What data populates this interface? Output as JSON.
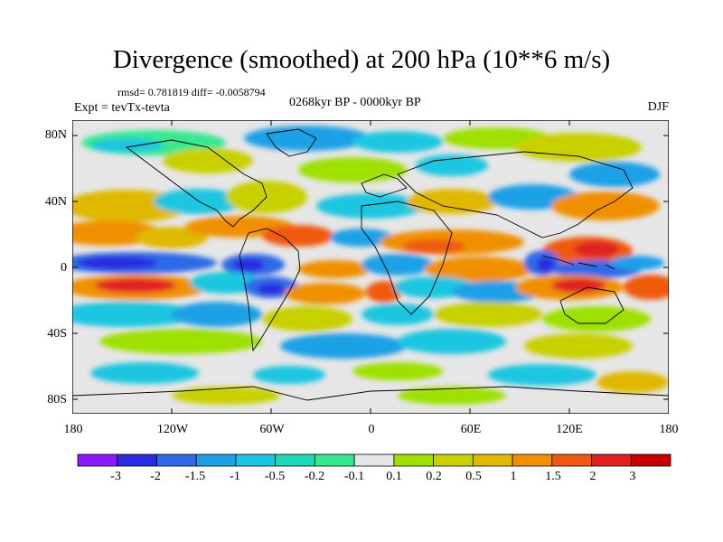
{
  "title": "Divergence (smoothed) at 200 hPa (10**6 m/s)",
  "stats": "rmsd= 0.781819 diff= -0.0058794",
  "experiment": "Expt = tevTx-tevta",
  "period": "0268kyr BP - 0000kyr BP",
  "season": "DJF",
  "lat_labels": [
    "80N",
    "40N",
    "0",
    "40S",
    "80S"
  ],
  "lon_labels": [
    "180",
    "120W",
    "60W",
    "0",
    "60E",
    "120E",
    "180"
  ],
  "colorbar": {
    "labels": [
      "-3",
      "-2",
      "-1.5",
      "-1",
      "-0.5",
      "-0.2",
      "-0.1",
      "0.1",
      "0.2",
      "0.5",
      "1",
      "1.5",
      "2",
      "3"
    ],
    "colors": [
      "#8c1aff",
      "#2a2ae0",
      "#2f6ae8",
      "#1fa0e6",
      "#1cc6e0",
      "#1bd8b8",
      "#38e890",
      "#e6e6e6",
      "#9ee000",
      "#c8d000",
      "#e0b800",
      "#f09000",
      "#f05a10",
      "#e02020",
      "#c80000"
    ]
  }
}
